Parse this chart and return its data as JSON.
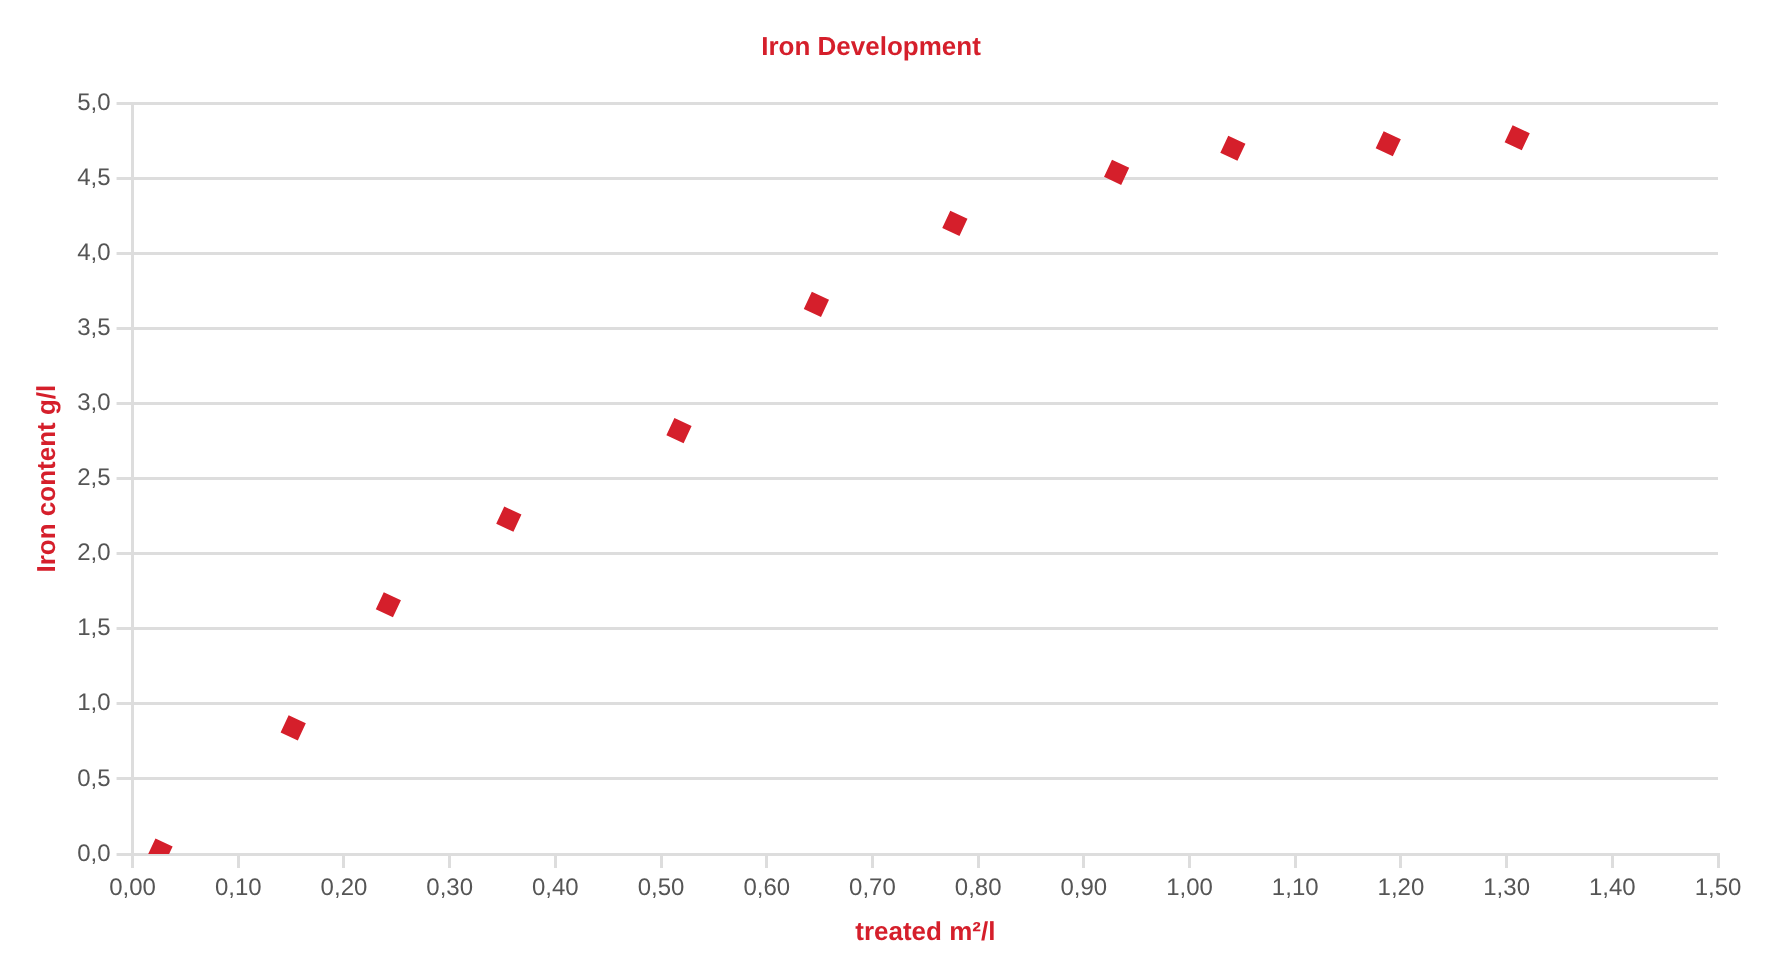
{
  "chart_data": {
    "type": "scatter",
    "title": "Iron Development",
    "xlabel": "treated m²/l",
    "ylabel": "Iron content g/l",
    "x": [
      0.026,
      0.152,
      0.242,
      0.356,
      0.517,
      0.647,
      0.778,
      0.931,
      1.041,
      1.188,
      1.31
    ],
    "series": [
      {
        "color": "#d51f2b",
        "values": [
          0.02,
          0.84,
          1.66,
          2.23,
          2.82,
          3.66,
          4.2,
          4.54,
          4.7,
          4.73,
          4.77
        ]
      }
    ],
    "xlim": [
      0,
      1.5
    ],
    "xticks": [
      {
        "value": 0,
        "label": "0,00"
      },
      {
        "value": 0.1,
        "label": "0,10"
      },
      {
        "value": 0.2,
        "label": "0,20"
      },
      {
        "value": 0.3,
        "label": "0,30"
      },
      {
        "value": 0.4,
        "label": "0,40"
      },
      {
        "value": 0.5,
        "label": "0,50"
      },
      {
        "value": 0.6,
        "label": "0,60"
      },
      {
        "value": 0.7,
        "label": "0,70"
      },
      {
        "value": 0.8,
        "label": "0,80"
      },
      {
        "value": 0.9,
        "label": "0,90"
      },
      {
        "value": 1.0,
        "label": "1,00"
      },
      {
        "value": 1.1,
        "label": "1,10"
      },
      {
        "value": 1.2,
        "label": "1,20"
      },
      {
        "value": 1.3,
        "label": "1,30"
      },
      {
        "value": 1.4,
        "label": "1,40"
      },
      {
        "value": 1.5,
        "label": "1,50"
      }
    ],
    "ylim": [
      0,
      5
    ],
    "yticks": [
      {
        "value": 0,
        "label": "0,0"
      },
      {
        "value": 0.5,
        "label": "0,5"
      },
      {
        "value": 1,
        "label": "1,0"
      },
      {
        "value": 1.5,
        "label": "1,5"
      },
      {
        "value": 2,
        "label": "2,0"
      },
      {
        "value": 2.5,
        "label": "2,5"
      },
      {
        "value": 3,
        "label": "3,0"
      },
      {
        "value": 3.5,
        "label": "3,5"
      },
      {
        "value": 4,
        "label": "4,0"
      },
      {
        "value": 4.5,
        "label": "4,5"
      },
      {
        "value": 5,
        "label": "5,0"
      }
    ],
    "grid": "y",
    "legend": false,
    "marker": "diamond"
  }
}
